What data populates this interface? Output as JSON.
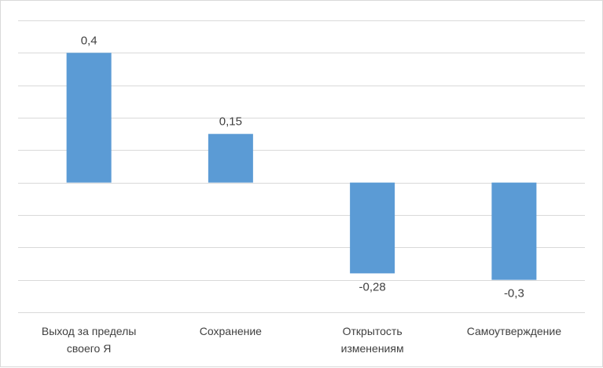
{
  "chart_data": {
    "type": "bar",
    "categories": [
      [
        "Выход за пределы",
        "своего Я"
      ],
      [
        "Сохранение"
      ],
      [
        "Открытость",
        "изменениям"
      ],
      [
        "Самоутверждение"
      ]
    ],
    "values": [
      0.4,
      0.15,
      -0.28,
      -0.3
    ],
    "data_labels": [
      "0,4",
      "0,15",
      "-0,28",
      "-0,3"
    ],
    "ylim": [
      -0.4,
      0.5
    ],
    "y_tick_step": 0.1,
    "grid": true,
    "title": "",
    "xlabel": "",
    "ylabel": "",
    "bar_color": "#5b9bd5",
    "grid_color": "#d9d9d9",
    "label_color": "#404040"
  }
}
